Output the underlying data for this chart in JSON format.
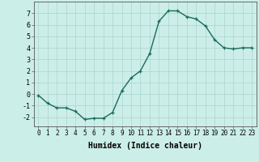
{
  "x": [
    0,
    1,
    2,
    3,
    4,
    5,
    6,
    7,
    8,
    9,
    10,
    11,
    12,
    13,
    14,
    15,
    16,
    17,
    18,
    19,
    20,
    21,
    22,
    23
  ],
  "y": [
    -0.1,
    -0.8,
    -1.2,
    -1.2,
    -1.5,
    -2.2,
    -2.1,
    -2.1,
    -1.6,
    0.3,
    1.4,
    2.0,
    3.5,
    6.3,
    7.2,
    7.2,
    6.7,
    6.5,
    5.9,
    4.7,
    4.0,
    3.9,
    4.0,
    4.0
  ],
  "line_color": "#1a6b5a",
  "marker": "+",
  "marker_size": 3,
  "background_color": "#cceee8",
  "grid_color": "#aad4ce",
  "xlabel": "Humidex (Indice chaleur)",
  "xlabel_fontsize": 7,
  "xlim": [
    -0.5,
    23.5
  ],
  "ylim": [
    -2.8,
    8.0
  ],
  "yticks": [
    -2,
    -1,
    0,
    1,
    2,
    3,
    4,
    5,
    6,
    7
  ],
  "xtick_labels": [
    "0",
    "1",
    "2",
    "3",
    "4",
    "5",
    "6",
    "7",
    "8",
    "9",
    "10",
    "11",
    "12",
    "13",
    "14",
    "15",
    "16",
    "17",
    "18",
    "19",
    "20",
    "21",
    "22",
    "23"
  ],
  "line_width": 1.0,
  "tick_fontsize": 5.5,
  "ytick_fontsize": 6.0
}
